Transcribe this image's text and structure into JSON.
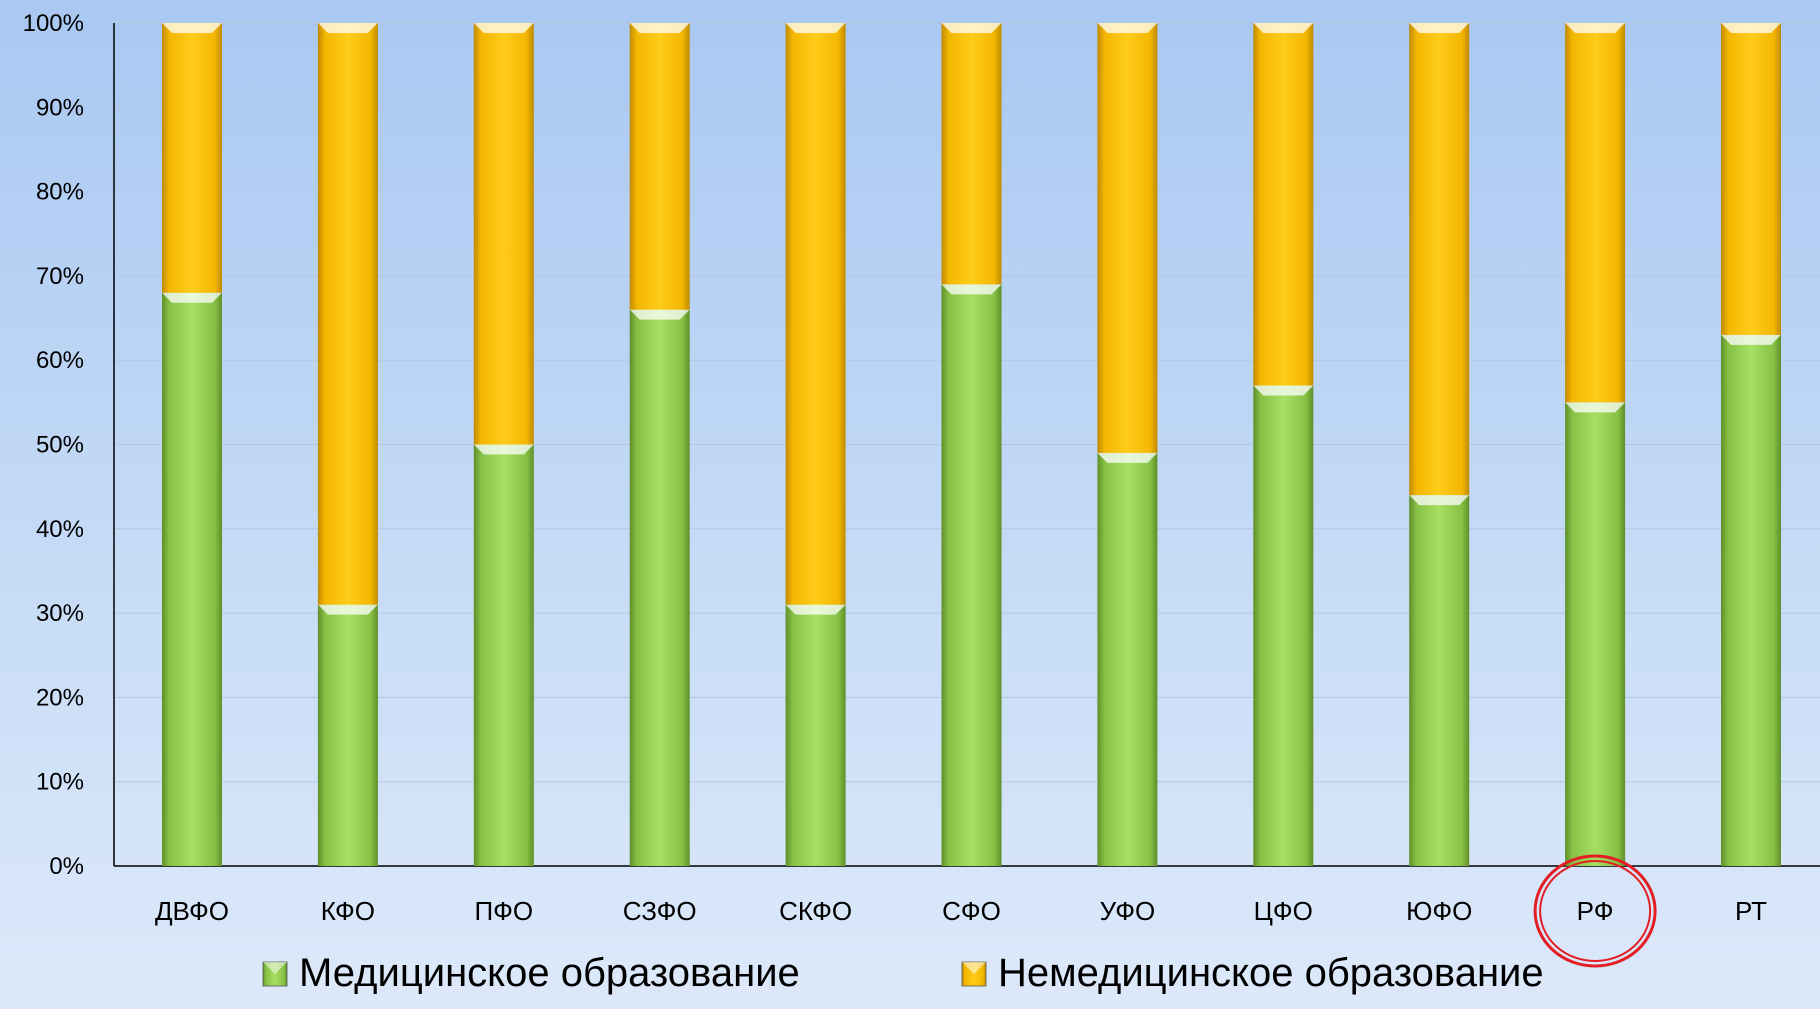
{
  "chart_data": {
    "type": "bar",
    "stacked": true,
    "percent": true,
    "categories": [
      "ДВФО",
      "КФО",
      "ПФО",
      "СЗФО",
      "СКФО",
      "СФО",
      "УФО",
      "ЦФО",
      "ЮФО",
      "РФ",
      "РТ"
    ],
    "series": [
      {
        "name": "Медицинское образование",
        "color": "#92d050",
        "values": [
          68,
          31,
          50,
          66,
          31,
          69,
          49,
          57,
          44,
          55,
          63
        ]
      },
      {
        "name": "Немедицинское образование",
        "color": "#ffc000",
        "values": [
          32,
          69,
          50,
          34,
          69,
          31,
          51,
          43,
          56,
          45,
          37
        ]
      }
    ],
    "yticks": [
      "0%",
      "10%",
      "20%",
      "30%",
      "40%",
      "50%",
      "60%",
      "70%",
      "80%",
      "90%",
      "100%"
    ],
    "ylim": [
      0,
      100
    ],
    "grid": true,
    "legend": "bottom",
    "highlighted_category": "РФ",
    "highlight_color": "#e31e24"
  }
}
